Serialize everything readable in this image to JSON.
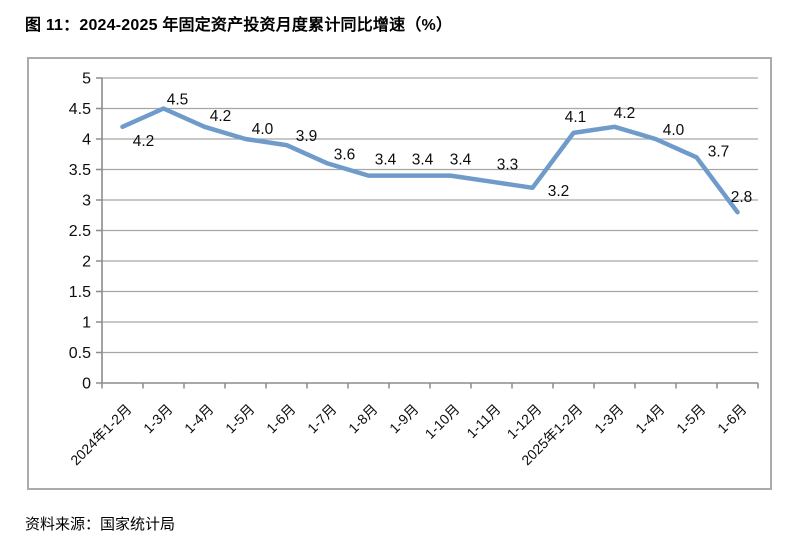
{
  "figure": {
    "title": "图 11：2024-2025 年固定资产投资月度累计同比增速（%）",
    "source": "资料来源：国家统计局"
  },
  "chart_data": {
    "type": "line",
    "title": "图 11：2024-2025 年固定资产投资月度累计同比增速（%）",
    "categories": [
      "2024年1-2月",
      "1-3月",
      "1-4月",
      "1-5月",
      "1-6月",
      "1-7月",
      "1-8月",
      "1-9月",
      "1-10月",
      "1-11月",
      "1-12月",
      "2025年1-2月",
      "1-3月",
      "1-4月",
      "1-5月",
      "1-6月"
    ],
    "values": [
      4.2,
      4.5,
      4.2,
      4.0,
      3.9,
      3.6,
      3.4,
      3.4,
      3.4,
      3.3,
      3.2,
      4.1,
      4.2,
      4.0,
      3.7,
      2.8
    ],
    "xlabel": "",
    "ylabel": "",
    "ylim": [
      0,
      5
    ],
    "ytick_step": 0.5,
    "ytick_labels": [
      "0",
      "0.5",
      "1",
      "1.5",
      "2",
      "2.5",
      "3",
      "3.5",
      "4",
      "4.5",
      "5"
    ],
    "grid": true,
    "legend_position": "none",
    "data_labels": true,
    "value_format_decimals": 1,
    "line_color": "#6f9bcb",
    "grid_color": "#a6a6a6",
    "axis_color": "#8c8c8c",
    "border_color": "#ababab",
    "label_color": "#0d0d0d"
  }
}
